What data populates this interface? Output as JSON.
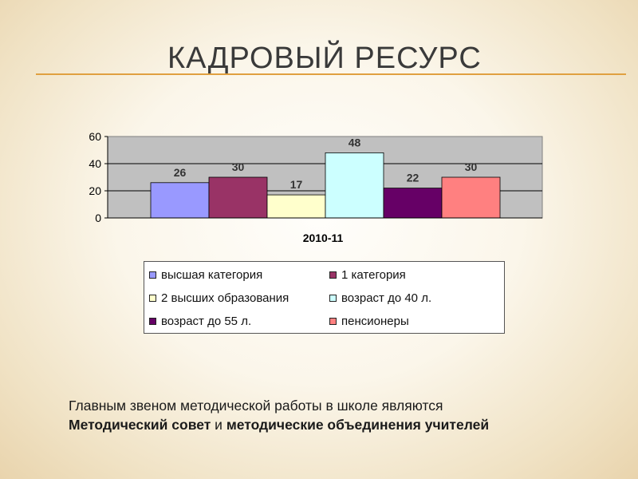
{
  "slide": {
    "title": "КАДРОВЫЙ РЕСУРС",
    "accent_color": "#e0a040"
  },
  "chart_data": {
    "type": "bar",
    "categories": [
      "2010-11"
    ],
    "series": [
      {
        "name": "высшая категория",
        "values": [
          26
        ],
        "color": "#9999ff"
      },
      {
        "name": "1 категория",
        "values": [
          30
        ],
        "color": "#993366"
      },
      {
        "name": "2 высших образования",
        "values": [
          17
        ],
        "color": "#ffffcc"
      },
      {
        "name": "возраст до 40 л.",
        "values": [
          48
        ],
        "color": "#ccffff"
      },
      {
        "name": "возраст до 55 л.",
        "values": [
          22
        ],
        "color": "#660066"
      },
      {
        "name": "пенсионеры",
        "values": [
          30
        ],
        "color": "#ff8080"
      }
    ],
    "y_ticks": [
      "0",
      "20",
      "40",
      "60"
    ],
    "ylim": [
      0,
      60
    ],
    "grid": true,
    "plot_background": "#c0c0c0",
    "legend_position": "bottom"
  },
  "text": {
    "line1": "Главным звеном методической работы в школе являются",
    "bold1": "Методический совет",
    "conj": " и ",
    "bold2": "методические объединения учителей"
  }
}
